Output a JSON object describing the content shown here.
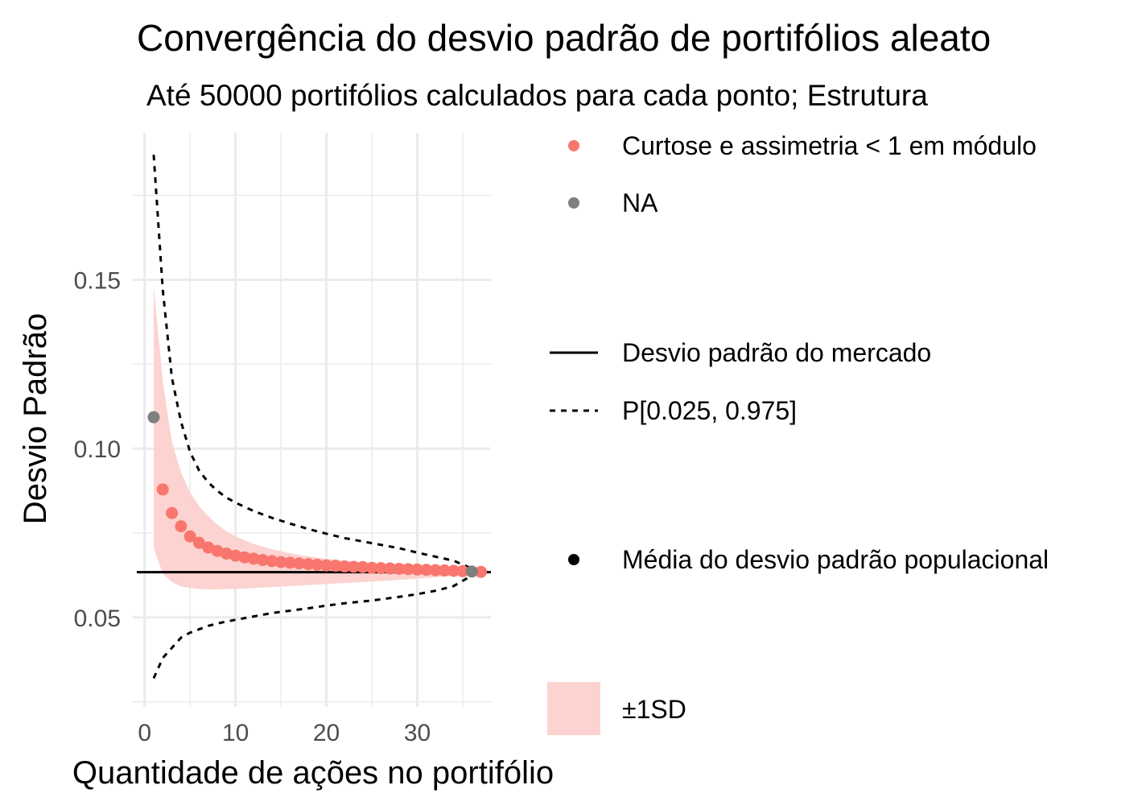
{
  "chart_data": {
    "type": "scatter",
    "title": "Convergência do desvio padrão de portifólios aleato",
    "subtitle": "Até  50000 portifólios calculados para cada ponto; Estrutura",
    "xlabel": "Quantidade de ações no portifólio",
    "ylabel": "Desvio Padrão",
    "xlim": [
      -1.3,
      38.1
    ],
    "ylim": [
      0.0235,
      0.1935
    ],
    "x_ticks": [
      0,
      10,
      20,
      30
    ],
    "x_tick_labels": [
      "0",
      "10",
      "20",
      "30"
    ],
    "y_ticks": [
      0.05,
      0.1,
      0.15
    ],
    "y_tick_labels": [
      "0.05",
      "0.10",
      "0.15"
    ],
    "grid": true,
    "colors": {
      "points": "#f8766d",
      "na_points": "#7f7f7f",
      "ribbon": "#fcd3d0",
      "market_line": "#000000",
      "grid": "#ebebeb",
      "population_mean": "#000000"
    },
    "series": [
      {
        "name": "Curtose e assimetria < 1 em módulo",
        "kind": "points",
        "x": [
          2,
          3,
          4,
          5,
          6,
          7,
          8,
          9,
          10,
          11,
          12,
          13,
          14,
          15,
          16,
          17,
          18,
          19,
          20,
          21,
          22,
          23,
          24,
          25,
          26,
          27,
          28,
          29,
          30,
          31,
          32,
          33,
          34,
          35,
          37
        ],
        "y": [
          0.0879,
          0.0809,
          0.077,
          0.074,
          0.0721,
          0.0707,
          0.0697,
          0.0689,
          0.0683,
          0.0678,
          0.0674,
          0.067,
          0.0667,
          0.0664,
          0.0662,
          0.066,
          0.0658,
          0.0656,
          0.0654,
          0.0653,
          0.0651,
          0.065,
          0.0649,
          0.0647,
          0.0646,
          0.0645,
          0.0644,
          0.0643,
          0.0642,
          0.0641,
          0.064,
          0.0639,
          0.0638,
          0.0637,
          0.0635
        ]
      },
      {
        "name": "NA",
        "kind": "points",
        "x": [
          1,
          36
        ],
        "y": [
          0.1093,
          0.0636
        ]
      },
      {
        "name": "Desvio padrão do mercado",
        "kind": "hline",
        "y": 0.0634
      },
      {
        "name": "P[0.025, 0.975]",
        "kind": "dashed",
        "upper_x": [
          1,
          2,
          3,
          4,
          5,
          6,
          7,
          8,
          9,
          10,
          12,
          14,
          16,
          18,
          20,
          22,
          25,
          28,
          30,
          32,
          34,
          36
        ],
        "upper_y": [
          0.187,
          0.147,
          0.121,
          0.108,
          0.099,
          0.0935,
          0.09,
          0.0875,
          0.0855,
          0.084,
          0.0815,
          0.0795,
          0.0778,
          0.0762,
          0.0748,
          0.0735,
          0.072,
          0.0705,
          0.0692,
          0.068,
          0.0668,
          0.0645
        ],
        "lower_x": [
          1,
          2,
          3,
          4,
          5,
          6,
          7,
          8,
          9,
          10,
          12,
          14,
          16,
          18,
          20,
          22,
          25,
          28,
          30,
          32,
          34,
          36
        ],
        "lower_y": [
          0.032,
          0.038,
          0.041,
          0.044,
          0.0455,
          0.0465,
          0.0475,
          0.0482,
          0.0488,
          0.0493,
          0.0503,
          0.0513,
          0.052,
          0.0527,
          0.0535,
          0.0542,
          0.055,
          0.0561,
          0.0569,
          0.0579,
          0.0593,
          0.0624
        ]
      },
      {
        "name": "±1SD",
        "kind": "ribbon",
        "x": [
          1,
          2,
          3,
          4,
          5,
          6,
          7,
          8,
          9,
          10,
          12,
          14,
          16,
          18,
          20,
          22,
          25,
          28,
          30,
          32,
          34,
          37
        ],
        "upper": [
          0.148,
          0.12,
          0.102,
          0.093,
          0.087,
          0.083,
          0.08,
          0.0775,
          0.0755,
          0.074,
          0.0718,
          0.0702,
          0.069,
          0.0681,
          0.0674,
          0.0668,
          0.0661,
          0.0655,
          0.0651,
          0.0647,
          0.0643,
          0.0637
        ],
        "lower": [
          0.0705,
          0.063,
          0.0605,
          0.0592,
          0.0587,
          0.0584,
          0.0583,
          0.0583,
          0.0584,
          0.0584,
          0.0587,
          0.059,
          0.0593,
          0.0596,
          0.0599,
          0.0602,
          0.0606,
          0.0611,
          0.0615,
          0.0619,
          0.0623,
          0.0631
        ]
      }
    ],
    "legend": {
      "position": "right",
      "entries": [
        {
          "label": "Curtose e assimetria < 1 em módulo",
          "key": "point",
          "color": "#f8766d"
        },
        {
          "label": "NA",
          "key": "point",
          "color": "#7f7f7f"
        },
        {
          "label": "Desvio padrão do mercado",
          "key": "solid-line",
          "color": "#000000"
        },
        {
          "label": "P[0.025, 0.975]",
          "key": "dashed-line",
          "color": "#000000"
        },
        {
          "label": "Média do desvio padrão populacional",
          "key": "point",
          "color": "#000000"
        },
        {
          "label": "±1SD",
          "key": "fill",
          "color": "#fcd3d0"
        }
      ]
    }
  }
}
